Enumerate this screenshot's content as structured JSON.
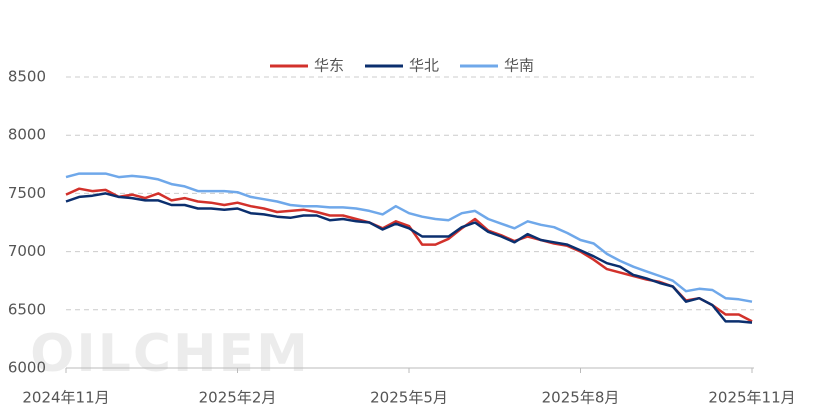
{
  "chart_data": {
    "type": "line",
    "watermark": "OILCHEM",
    "categories": [
      "2024年11月",
      null,
      null,
      null,
      null,
      null,
      null,
      null,
      null,
      null,
      null,
      null,
      null,
      "2025年2月",
      null,
      null,
      null,
      null,
      null,
      null,
      null,
      null,
      null,
      null,
      null,
      null,
      "2025年5月",
      null,
      null,
      null,
      null,
      null,
      null,
      null,
      null,
      null,
      null,
      null,
      null,
      "2025年8月",
      null,
      null,
      null,
      null,
      null,
      null,
      null,
      null,
      null,
      null,
      null,
      null,
      "2025年11月"
    ],
    "series": [
      {
        "name": "华东",
        "color": "#d2312b",
        "values": [
          7490,
          7540,
          7520,
          7530,
          7470,
          7490,
          7460,
          7500,
          7440,
          7460,
          7430,
          7420,
          7400,
          7420,
          7390,
          7370,
          7340,
          7350,
          7360,
          7340,
          7310,
          7310,
          7280,
          7250,
          7200,
          7260,
          7220,
          7060,
          7060,
          7110,
          7200,
          7280,
          7180,
          7140,
          7090,
          7130,
          7100,
          7070,
          7050,
          7000,
          6930,
          6850,
          6820,
          6790,
          6760,
          6740,
          6700,
          6580,
          6600,
          6540,
          6460,
          6460,
          6400
        ]
      },
      {
        "name": "华北",
        "color": "#0b2f6e",
        "values": [
          7430,
          7470,
          7480,
          7500,
          7470,
          7460,
          7440,
          7440,
          7400,
          7400,
          7370,
          7370,
          7360,
          7370,
          7330,
          7320,
          7300,
          7290,
          7310,
          7310,
          7270,
          7280,
          7260,
          7250,
          7190,
          7240,
          7200,
          7130,
          7130,
          7130,
          7210,
          7250,
          7170,
          7130,
          7080,
          7150,
          7100,
          7080,
          7060,
          7010,
          6960,
          6900,
          6870,
          6800,
          6770,
          6730,
          6700,
          6570,
          6600,
          6540,
          6400,
          6400,
          6390
        ]
      },
      {
        "name": "华南",
        "color": "#6fa8ea",
        "values": [
          7640,
          7670,
          7670,
          7670,
          7640,
          7650,
          7640,
          7620,
          7580,
          7560,
          7520,
          7520,
          7520,
          7510,
          7470,
          7450,
          7430,
          7400,
          7390,
          7390,
          7380,
          7380,
          7370,
          7350,
          7320,
          7390,
          7330,
          7300,
          7280,
          7270,
          7330,
          7350,
          7280,
          7240,
          7200,
          7260,
          7230,
          7210,
          7160,
          7100,
          7070,
          6980,
          6920,
          6870,
          6830,
          6790,
          6750,
          6660,
          6680,
          6670,
          6600,
          6590,
          6570
        ]
      }
    ],
    "ylim": [
      6000,
      8500
    ],
    "yticks": [
      6000,
      6500,
      7000,
      7500,
      8000,
      8500
    ],
    "grid": true
  }
}
